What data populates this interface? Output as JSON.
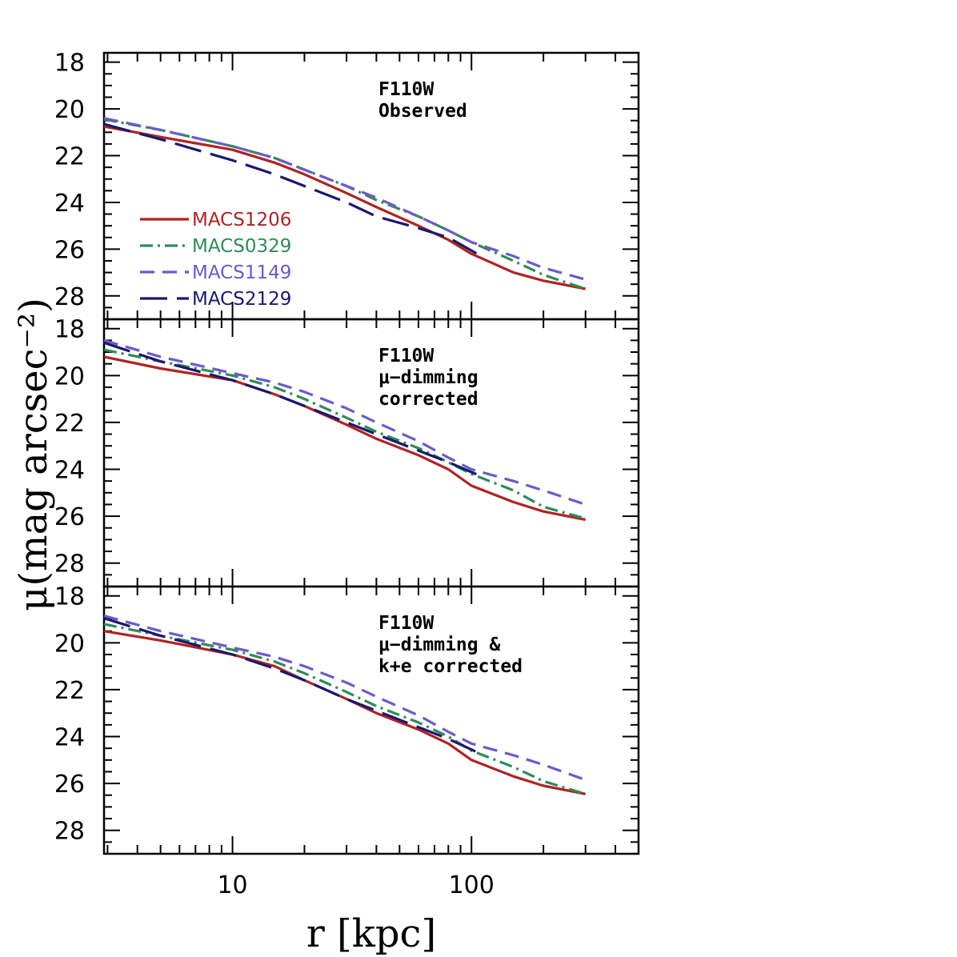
{
  "chart_data": {
    "type": "line",
    "xlabel": "r [kpc]",
    "ylabel": "μ(mag arcsec⁻²)",
    "xscale": "log",
    "xlim": [
      2.9,
      500
    ],
    "ylim": [
      29,
      17.6
    ],
    "x_tick_labels": [
      "10",
      "100"
    ],
    "y_tick_labels": [
      "18",
      "20",
      "22",
      "24",
      "26",
      "28"
    ],
    "series_styles": [
      {
        "name": "MACS1206",
        "color": "#b22222",
        "dash": "solid"
      },
      {
        "name": "MACS0329",
        "color": "#2e8b57",
        "dash": "dashdot"
      },
      {
        "name": "MACS1149",
        "color": "#6a5acd",
        "dash": "dashed"
      },
      {
        "name": "MACS2129",
        "color": "#191970",
        "dash": "longdash"
      }
    ],
    "legend_position": "left-middle of top panel",
    "panels": [
      {
        "id": "observed",
        "annotation": [
          "F110W",
          "Observed"
        ],
        "series": [
          {
            "name": "MACS1206",
            "x": [
              2.9,
              5,
              10,
              15,
              20,
              30,
              40,
              60,
              80,
              100,
              150,
              200,
              300
            ],
            "y": [
              20.75,
              21.2,
              21.75,
              22.3,
              22.8,
              23.6,
              24.2,
              25.0,
              25.6,
              26.2,
              27.0,
              27.35,
              27.7
            ]
          },
          {
            "name": "MACS0329",
            "x": [
              2.9,
              5,
              10,
              15,
              20,
              30,
              40,
              60,
              80,
              100,
              150,
              200,
              300
            ],
            "y": [
              20.45,
              20.9,
              21.6,
              22.1,
              22.6,
              23.3,
              23.9,
              24.6,
              25.2,
              25.7,
              26.5,
              27.1,
              27.7
            ]
          },
          {
            "name": "MACS1149",
            "x": [
              2.9,
              5,
              10,
              15,
              20,
              30,
              40,
              60,
              80,
              100,
              150,
              200,
              300
            ],
            "y": [
              20.4,
              20.9,
              21.6,
              22.1,
              22.6,
              23.3,
              23.8,
              24.6,
              25.2,
              25.7,
              26.3,
              26.8,
              27.3
            ]
          },
          {
            "name": "MACS2129",
            "x": [
              2.9,
              5,
              10,
              15,
              20,
              30,
              40,
              60,
              80,
              110
            ],
            "y": [
              20.65,
              21.3,
              22.2,
              22.8,
              23.3,
              24.0,
              24.6,
              25.1,
              25.5,
              26.3
            ]
          }
        ]
      },
      {
        "id": "dimming",
        "annotation": [
          "F110W",
          "μ−dimming",
          "corrected"
        ],
        "series": [
          {
            "name": "MACS1206",
            "x": [
              2.9,
              5,
              10,
              15,
              20,
              30,
              40,
              60,
              80,
              100,
              150,
              200,
              300
            ],
            "y": [
              19.2,
              19.7,
              20.2,
              20.8,
              21.3,
              22.1,
              22.7,
              23.4,
              24.0,
              24.7,
              25.4,
              25.8,
              26.15
            ]
          },
          {
            "name": "MACS0329",
            "x": [
              2.9,
              5,
              10,
              15,
              20,
              30,
              40,
              60,
              80,
              100,
              150,
              200,
              300
            ],
            "y": [
              18.9,
              19.4,
              20.0,
              20.5,
              21.0,
              21.8,
              22.4,
              23.1,
              23.7,
              24.2,
              24.9,
              25.6,
              26.1
            ]
          },
          {
            "name": "MACS1149",
            "x": [
              2.9,
              5,
              10,
              15,
              20,
              30,
              40,
              60,
              80,
              100,
              150,
              200,
              300
            ],
            "y": [
              18.5,
              19.2,
              19.9,
              20.3,
              20.7,
              21.4,
              22.0,
              22.8,
              23.5,
              24.0,
              24.5,
              24.9,
              25.5
            ]
          },
          {
            "name": "MACS2129",
            "x": [
              2.9,
              5,
              10,
              15,
              20,
              30,
              40,
              60,
              80,
              110
            ],
            "y": [
              18.6,
              19.4,
              20.2,
              20.8,
              21.3,
              22.0,
              22.5,
              23.2,
              23.7,
              24.3
            ]
          }
        ]
      },
      {
        "id": "dimming-ke",
        "annotation": [
          "F110W",
          "μ−dimming &",
          "k+e corrected"
        ],
        "series": [
          {
            "name": "MACS1206",
            "x": [
              2.9,
              5,
              10,
              15,
              20,
              30,
              40,
              60,
              80,
              100,
              150,
              200,
              300
            ],
            "y": [
              19.5,
              19.9,
              20.5,
              21.0,
              21.6,
              22.4,
              23.0,
              23.7,
              24.3,
              25.0,
              25.7,
              26.1,
              26.45
            ]
          },
          {
            "name": "MACS0329",
            "x": [
              2.9,
              5,
              10,
              15,
              20,
              30,
              40,
              60,
              80,
              100,
              150,
              200,
              300
            ],
            "y": [
              19.2,
              19.7,
              20.3,
              20.8,
              21.3,
              22.1,
              22.7,
              23.4,
              24.0,
              24.6,
              25.3,
              25.9,
              26.45
            ]
          },
          {
            "name": "MACS1149",
            "x": [
              2.9,
              5,
              10,
              15,
              20,
              30,
              40,
              60,
              80,
              100,
              150,
              200,
              300
            ],
            "y": [
              18.85,
              19.5,
              20.2,
              20.6,
              21.0,
              21.7,
              22.3,
              23.1,
              23.8,
              24.3,
              24.8,
              25.2,
              25.85
            ]
          },
          {
            "name": "MACS2129",
            "x": [
              2.9,
              5,
              10,
              15,
              20,
              30,
              40,
              60,
              80,
              110
            ],
            "y": [
              18.95,
              19.7,
              20.5,
              21.1,
              21.6,
              22.4,
              22.9,
              23.6,
              24.1,
              24.75
            ]
          }
        ]
      }
    ]
  }
}
